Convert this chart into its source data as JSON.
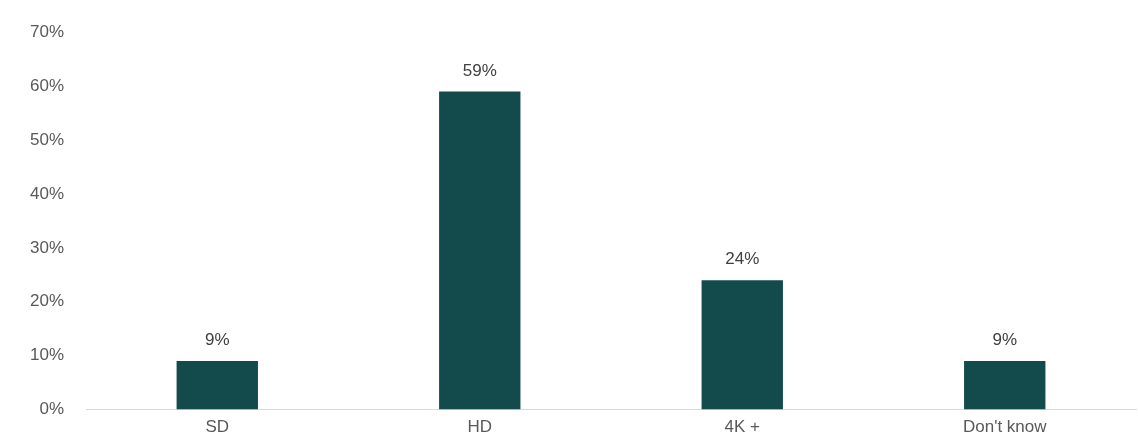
{
  "chart_data": {
    "type": "bar",
    "categories": [
      "SD",
      "HD",
      "4K +",
      "Don't know"
    ],
    "values": [
      9,
      59,
      24,
      9
    ],
    "value_labels": [
      "9%",
      "59%",
      "24%",
      "9%"
    ],
    "color": "#134b4d",
    "ylim": [
      0,
      70
    ],
    "yticks": [
      {
        "value": 0,
        "label": "0%"
      },
      {
        "value": 10,
        "label": "10%"
      },
      {
        "value": 20,
        "label": "20%"
      },
      {
        "value": 30,
        "label": "30%"
      },
      {
        "value": 40,
        "label": "40%"
      },
      {
        "value": 50,
        "label": "50%"
      },
      {
        "value": 60,
        "label": "60%"
      },
      {
        "value": 70,
        "label": "70%"
      }
    ],
    "grid": false,
    "legend": false
  }
}
